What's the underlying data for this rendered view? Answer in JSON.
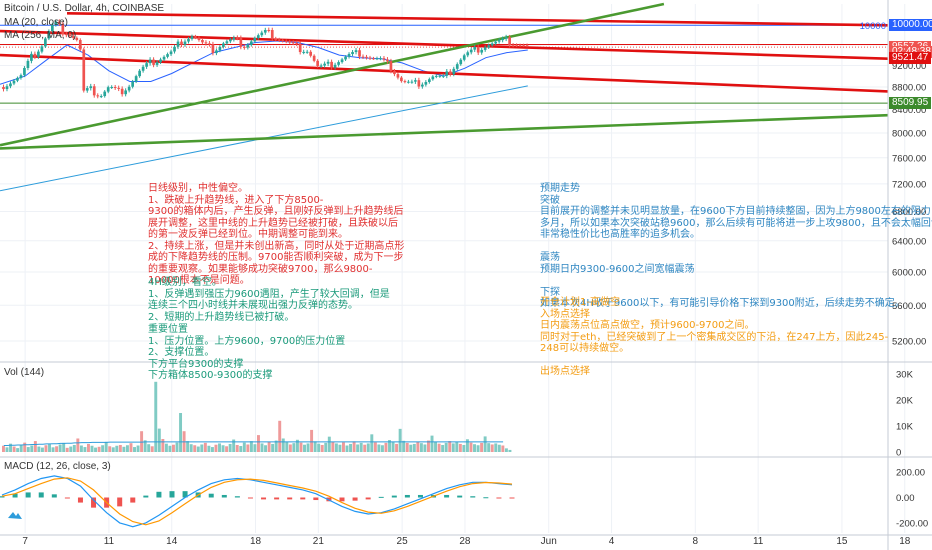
{
  "header": {
    "title": "Bitcoin / U.S. Dollar, 4h, COINBASE",
    "ma1": "MA (20, close)",
    "ma2": "MA (256, MA, 0)"
  },
  "price_axis": {
    "ticks": [
      "10000",
      "9600.00",
      "9200.00",
      "8800.00",
      "8400.00",
      "8000.00",
      "7600.00",
      "7200.00",
      "6800.00",
      "6400.00",
      "6000.00",
      "5600.00",
      "5200.00"
    ],
    "tags": [
      {
        "text": "10000.00",
        "value": 10000,
        "color": "#2962ff"
      },
      {
        "text": "9557.26",
        "value": 9557.26,
        "color": "#ef5350"
      },
      {
        "text": "02:48:38",
        "value": 9457,
        "color": "#ef5350"
      },
      {
        "text": "9521.47",
        "value": 9340,
        "color": "#e01010"
      },
      {
        "text": "8509.95",
        "value": 8509.95,
        "color": "#3c8a2c"
      }
    ],
    "level_label": "10000"
  },
  "volume": {
    "label": "Vol (144)",
    "ticks": [
      "30K",
      "20K",
      "10K",
      "0"
    ]
  },
  "macd": {
    "label": "MACD (12, 26, close, 3)",
    "ticks": [
      "200.00",
      "0.00",
      "-200.00"
    ]
  },
  "x_axis": {
    "labels": [
      "7",
      "11",
      "14",
      "18",
      "21",
      "25",
      "28",
      "Jun",
      "4",
      "8",
      "11",
      "15",
      "18"
    ]
  },
  "notes": {
    "daily": [
      "日线级别，中性偏空。",
      "1、跌破上升趋势线，进入了下方8500-",
      "9300的箱体内后，产生反弹，且刚好反弹到上升趋势线后",
      "展开调整，这里中线的上升趋势已经被打破，且跌破以后",
      "的第一波反弹已经到位。中期调整可能到来。",
      "2、持续上涨，但是并未创出新高，同时从处于近期高点形",
      "成的下降趋势线的压制。9700能否顺利突破，成为下一步",
      "的重要观察。如果能够成功突破9700，那么9800-",
      "10000根本不是问题。"
    ],
    "h4": [
      "4H级别，看空。",
      "1、反弹遇到强压力9600遇阻，产生了较大回调，但是",
      "连续三个四小时线并未展现出强力反弹的态势。",
      "2、短期的上升趋势线已被打破。"
    ],
    "levels": [
      "重要位置",
      "1、压力位置。上方9600，9700的压力位置",
      "2、支撑位置。",
      "下方平台9300的支撑",
      "下方箱体8500-9300的支撑"
    ],
    "forecast": [
      "预期走势",
      "突破",
      "目前展开的调整并未见明显放量，在9600下方目前持续整固，因为上方9800左右的阻力",
      "多月，所以如果本次突破站稳9600，那么后续有可能将进一步上攻9800，且不会太幅回调",
      "非常稳性价比也高胜率的追多机会。",
      "",
      "震荡",
      "预期日内9300-9600之间宽幅震荡",
      "",
      "下探",
      "如果本次4H收于9600以下，有可能引导价格下探到9300附近，后续走势不确定。"
    ],
    "plan": [
      "开仓计划1-高做空",
      "入场点选择",
      "日内震荡点位高点做空，预计9600-9700之间。",
      "同时对于eth，已经突破到了上一个密集成交区的下沿，在247上方，因此245-",
      "248可以持续做空。",
      "",
      "出场点选择"
    ]
  },
  "chart_data": [
    {
      "type": "candlestick",
      "title": "Bitcoin / U.S. Dollar, 4h, COINBASE",
      "ylim": [
        5000,
        10450
      ],
      "y_scale": "log",
      "x_day_range": [
        5.8,
        48.2
      ],
      "x_tick_days": [
        7,
        11,
        14,
        18,
        21,
        25,
        28,
        32,
        35,
        39,
        42,
        46,
        49
      ],
      "close_path": [
        [
          5.8,
          8800
        ],
        [
          6.3,
          8900
        ],
        [
          6.8,
          9000
        ],
        [
          7.3,
          9350
        ],
        [
          7.8,
          9600
        ],
        [
          8.1,
          9850
        ],
        [
          8.4,
          10050
        ],
        [
          8.8,
          9900
        ],
        [
          9.2,
          9800
        ],
        [
          9.6,
          9650
        ],
        [
          9.8,
          8700
        ],
        [
          10.1,
          8750
        ],
        [
          10.6,
          8650
        ],
        [
          11.0,
          8800
        ],
        [
          11.5,
          8700
        ],
        [
          12.0,
          8850
        ],
        [
          12.5,
          9100
        ],
        [
          13.0,
          9250
        ],
        [
          13.5,
          9350
        ],
        [
          14.0,
          9450
        ],
        [
          14.5,
          9700
        ],
        [
          15.0,
          9800
        ],
        [
          15.5,
          9600
        ],
        [
          16.0,
          9500
        ],
        [
          16.5,
          9650
        ],
        [
          17.0,
          9700
        ],
        [
          17.5,
          9600
        ],
        [
          18.0,
          9750
        ],
        [
          18.5,
          9850
        ],
        [
          19.0,
          9750
        ],
        [
          19.5,
          9650
        ],
        [
          20.0,
          9550
        ],
        [
          20.5,
          9500
        ],
        [
          21.0,
          9150
        ],
        [
          21.5,
          9200
        ],
        [
          22.0,
          9300
        ],
        [
          22.5,
          9400
        ],
        [
          23.0,
          9450
        ],
        [
          23.5,
          9350
        ],
        [
          24.0,
          9300
        ],
        [
          24.5,
          9150
        ],
        [
          25.0,
          8900
        ],
        [
          25.5,
          8850
        ],
        [
          26.0,
          8900
        ],
        [
          26.5,
          9000
        ],
        [
          27.0,
          8950
        ],
        [
          27.5,
          9200
        ],
        [
          28.0,
          9400
        ],
        [
          28.5,
          9500
        ],
        [
          29.0,
          9600
        ],
        [
          29.5,
          9650
        ],
        [
          30.0,
          9680
        ],
        [
          30.5,
          9620
        ],
        [
          31.0,
          9560
        ]
      ],
      "lines": [
        {
          "name": "MA (20, close)",
          "color": "#2962ff",
          "points": [
            [
              5.8,
              8850
            ],
            [
              7,
              9000
            ],
            [
              8,
              9300
            ],
            [
              9,
              9600
            ],
            [
              10,
              9400
            ],
            [
              11,
              9100
            ],
            [
              12,
              8900
            ],
            [
              13,
              8900
            ],
            [
              14,
              9050
            ],
            [
              15,
              9250
            ],
            [
              16,
              9450
            ],
            [
              17,
              9550
            ],
            [
              18,
              9650
            ],
            [
              19,
              9680
            ],
            [
              20,
              9650
            ],
            [
              21,
              9550
            ],
            [
              22,
              9400
            ],
            [
              23,
              9350
            ],
            [
              24,
              9330
            ],
            [
              25,
              9250
            ],
            [
              26,
              9100
            ],
            [
              27,
              9000
            ],
            [
              28,
              9150
            ],
            [
              29,
              9350
            ],
            [
              30,
              9450
            ],
            [
              31,
              9500
            ]
          ]
        },
        {
          "name": "MA (256, MA, 0)",
          "color": "#2d9cdb",
          "points": [
            [
              5.8,
              7100
            ],
            [
              31,
              8820
            ]
          ]
        },
        {
          "name": "resistance-1",
          "color": "#e01010",
          "points": [
            [
              9.0,
              10250
            ],
            [
              48.2,
              10000
            ]
          ]
        },
        {
          "name": "resistance-2",
          "color": "#e01010",
          "points": [
            [
              5.8,
              9880
            ],
            [
              48.2,
              9330
            ]
          ]
        },
        {
          "name": "resistance-3",
          "color": "#e01010",
          "points": [
            [
              5.8,
              9400
            ],
            [
              48.2,
              8720
            ]
          ]
        },
        {
          "name": "uptrend-1",
          "color": "#4a9a30",
          "points": [
            [
              5.8,
              7800
            ],
            [
              37.5,
              10450
            ]
          ]
        },
        {
          "name": "uptrend-2",
          "color": "#4a9a30",
          "points": [
            [
              5.8,
              7750
            ],
            [
              48.2,
              8300
            ]
          ]
        }
      ],
      "h_levels": [
        {
          "value": 10000,
          "color": "#2962ff"
        },
        {
          "value": 9557.26,
          "color": "#ef5350",
          "style": "dotted"
        },
        {
          "value": 9610,
          "color": "#e01010"
        },
        {
          "value": 8509.95,
          "color": "#3c8a2c"
        }
      ]
    },
    {
      "type": "bar",
      "name": "Vol (144)",
      "ylim": [
        0,
        30000
      ],
      "values": [
        2400,
        1800,
        3200,
        2100,
        1500,
        2800,
        3600,
        1900,
        2500,
        4200,
        2100,
        1700,
        2600,
        3000,
        1800,
        2200,
        2900,
        3500,
        1600,
        2100,
        2700,
        5200,
        2500,
        1900,
        3100,
        2400,
        1700,
        2000,
        2600,
        3900,
        2200,
        1800,
        2400,
        2700,
        2000,
        2600,
        3400,
        1900,
        2500,
        8000,
        4500,
        3000,
        2200,
        27000,
        9000,
        5000,
        3200,
        2400,
        2800,
        3600,
        15000,
        8000,
        4200,
        3000,
        2600,
        2100,
        2900,
        3500,
        2400,
        1900,
        2800,
        3300,
        2600,
        2200,
        3100,
        4800,
        2700,
        2300,
        3600,
        2900,
        4200,
        3000,
        6500,
        3300,
        2600,
        3900,
        3100,
        4400,
        12000,
        5200,
        3800,
        2900,
        3400,
        4700,
        3600,
        2800,
        3300,
        8500,
        4100,
        3200,
        2700,
        3500,
        5900,
        3900,
        3300,
        2800,
        3700,
        2500,
        3100,
        4100,
        2900,
        3500,
        2800,
        3300,
        6800,
        3700,
        2900,
        2600,
        3500,
        4600,
        3800,
        3100,
        8900,
        4300,
        3500,
        2800,
        3100,
        3900,
        3400,
        2900,
        4400,
        6300,
        3900,
        3200,
        2700,
        3500,
        4200,
        3300,
        3800,
        3100,
        2700,
        4900,
        3600,
        3000,
        2600,
        3500,
        6000,
        3400,
        2900,
        3300,
        2800,
        2500,
        1400,
        800
      ],
      "ma": [
        2500,
        2500,
        2600,
        2600,
        2700,
        2700,
        2800,
        2800,
        2900,
        2900,
        3000,
        3000,
        3100,
        3100,
        3200,
        3200,
        3300,
        3300,
        3400,
        3400,
        3500,
        3500,
        3600,
        3600,
        3600,
        3700,
        3700,
        3700,
        3700,
        3700,
        3800,
        3800,
        3800,
        3800,
        3800,
        3800,
        3800,
        3800,
        3800,
        3800,
        3900,
        3900,
        3900,
        3900,
        3900,
        3900,
        3900,
        3900,
        3900,
        3900,
        3900,
        3900,
        3900,
        3900,
        3900,
        3900,
        3900,
        3900,
        3900,
        3900,
        3900,
        3900,
        3900,
        3900,
        3900,
        3900,
        3900,
        3900,
        3900,
        3900,
        3900,
        3900,
        3900,
        3900,
        3900,
        3900,
        3900,
        3900,
        3900,
        3900,
        3900,
        3900,
        3900,
        3900,
        3900,
        3900,
        3900,
        3900,
        3900,
        3900,
        3900,
        3900,
        3900,
        3900,
        3900,
        3900,
        3900,
        3900,
        3900,
        3900,
        3900,
        3900,
        3900,
        3900,
        3900,
        3900,
        3900,
        3900,
        3900,
        3900,
        3900,
        3900,
        3900,
        3900,
        3900,
        3900,
        3900,
        3900,
        3900,
        3900,
        3900,
        3900,
        3900,
        3900,
        3900,
        3900,
        3900,
        3900,
        3900,
        3900,
        3900,
        3900,
        3900,
        3900,
        3900,
        3900,
        3900,
        3900,
        3900,
        3900,
        3900,
        3900
      ]
    },
    {
      "type": "line",
      "name": "MACD (12, 26, close, 3)",
      "ylim": [
        -280,
        280
      ],
      "series": [
        {
          "name": "macd",
          "color": "#2196f3",
          "values": [
            20,
            60,
            110,
            150,
            170,
            150,
            90,
            -20,
            -120,
            -200,
            -230,
            -200,
            -140,
            -70,
            0,
            60,
            110,
            140,
            150,
            140,
            120,
            100,
            80,
            60,
            30,
            -20,
            -70,
            -110,
            -130,
            -120,
            -90,
            -50,
            -10,
            30,
            70,
            100,
            120,
            120,
            110,
            100
          ]
        },
        {
          "name": "signal",
          "color": "#ff9800",
          "values": [
            10,
            30,
            70,
            110,
            145,
            155,
            130,
            60,
            -40,
            -130,
            -190,
            -215,
            -185,
            -120,
            -50,
            20,
            80,
            120,
            140,
            145,
            135,
            115,
            95,
            75,
            50,
            10,
            -40,
            -85,
            -115,
            -125,
            -105,
            -70,
            -30,
            10,
            50,
            85,
            110,
            118,
            114,
            106
          ]
        }
      ]
    }
  ]
}
